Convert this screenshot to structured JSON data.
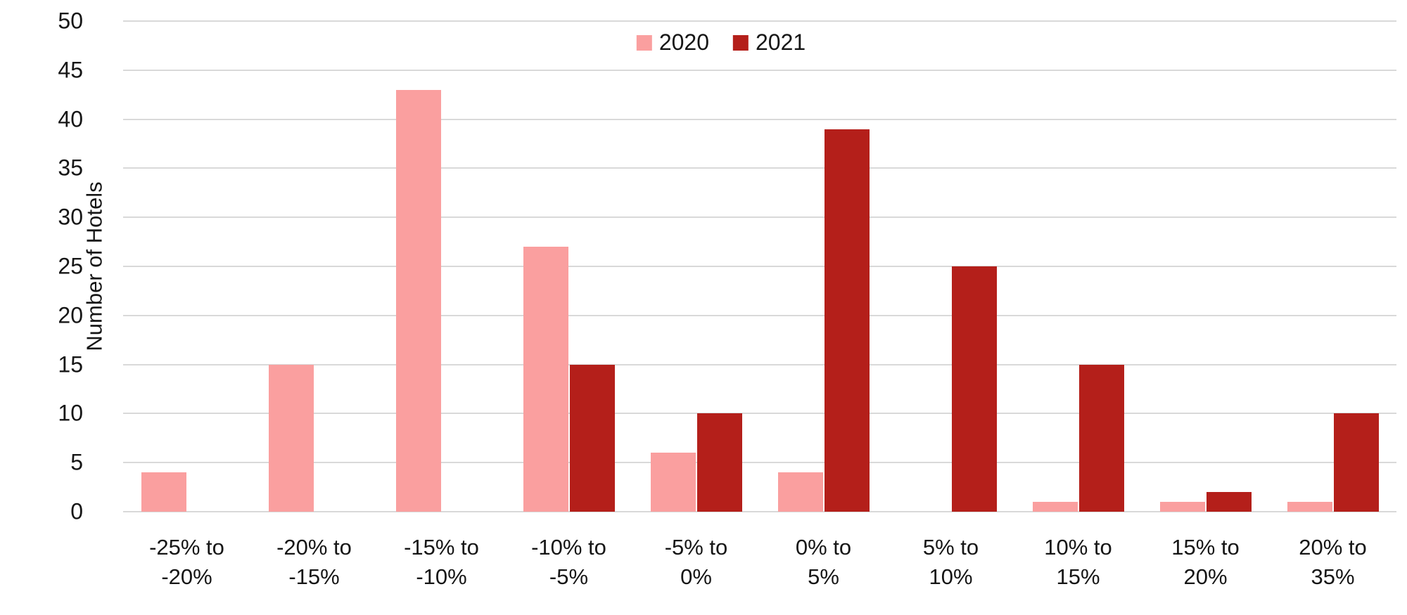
{
  "chart_data": {
    "type": "bar",
    "title": "",
    "xlabel": "",
    "ylabel": "Number of Hotels",
    "ylim": [
      0,
      50
    ],
    "ytick_step": 5,
    "yticks": [
      0,
      5,
      10,
      15,
      20,
      25,
      30,
      35,
      40,
      45,
      50
    ],
    "grid": "horizontal",
    "legend_position": "top-center",
    "gridline_color": "#D9D9D9",
    "text_color": "#161616",
    "categories": [
      {
        "line1": "-25% to",
        "line2": "-20%"
      },
      {
        "line1": "-20% to",
        "line2": "-15%"
      },
      {
        "line1": "-15% to",
        "line2": "-10%"
      },
      {
        "line1": "-10% to",
        "line2": "-5%"
      },
      {
        "line1": "-5% to",
        "line2": "0%"
      },
      {
        "line1": "0% to",
        "line2": "5%"
      },
      {
        "line1": "5% to",
        "line2": "10%"
      },
      {
        "line1": "10% to",
        "line2": "15%"
      },
      {
        "line1": "15% to",
        "line2": "20%"
      },
      {
        "line1": "20% to",
        "line2": "35%"
      }
    ],
    "series": [
      {
        "name": "2020",
        "color": "#FA9F9F",
        "values": [
          4,
          15,
          43,
          27,
          6,
          4,
          0,
          1,
          1,
          1
        ]
      },
      {
        "name": "2021",
        "color": "#B41F1A",
        "values": [
          0,
          0,
          0,
          15,
          10,
          39,
          25,
          15,
          2,
          10
        ]
      }
    ]
  }
}
